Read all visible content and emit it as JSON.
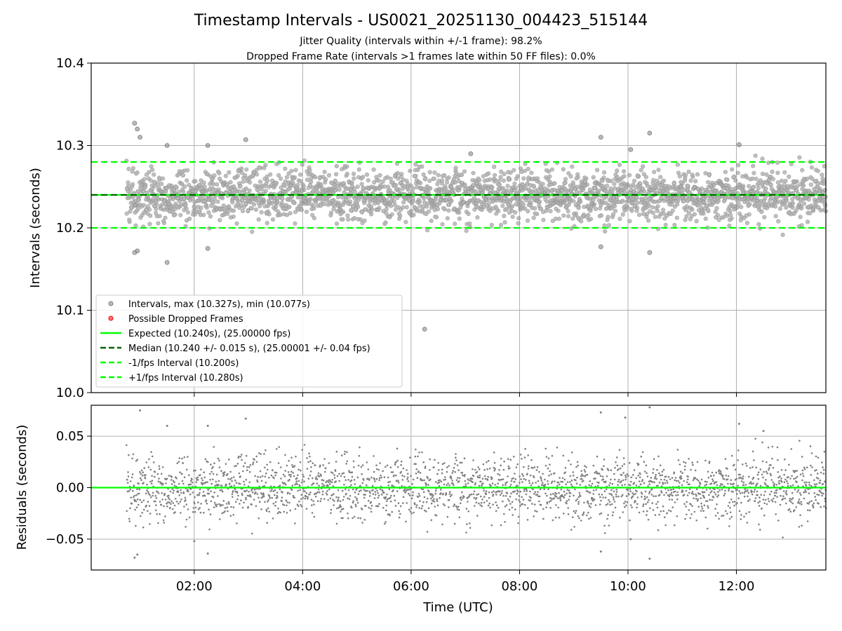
{
  "chart_data": {
    "title": "Timestamp Intervals - US0021_20251130_004423_515144",
    "subtitle_1": "Jitter Quality (intervals within +/-1 frame): 98.2%",
    "subtitle_2": "Dropped Frame Rate (intervals >1 frames late within 50 FF files): 0.0%",
    "xlabel": "Time (UTC)",
    "xticks": [
      {
        "value": 2,
        "label": "02:00"
      },
      {
        "value": 4,
        "label": "04:00"
      },
      {
        "value": 6,
        "label": "06:00"
      },
      {
        "value": 8,
        "label": "08:00"
      },
      {
        "value": 10,
        "label": "10:00"
      },
      {
        "value": 12,
        "label": "12:00"
      }
    ],
    "xlim": [
      0.1,
      13.65
    ],
    "data_time_range": [
      0.75,
      13.65
    ],
    "top": {
      "type": "scatter",
      "ylabel": "Intervals (seconds)",
      "ylim": [
        10.0,
        10.4
      ],
      "yticks": [
        {
          "value": 10.0,
          "label": "10.0"
        },
        {
          "value": 10.1,
          "label": "10.1"
        },
        {
          "value": 10.2,
          "label": "10.2"
        },
        {
          "value": 10.3,
          "label": "10.3"
        },
        {
          "value": 10.4,
          "label": "10.4"
        }
      ],
      "expected": 10.24,
      "median": 10.24,
      "minus_1fps": 10.2,
      "plus_1fps": 10.28,
      "outliers": [
        [
          0.9,
          10.327
        ],
        [
          0.95,
          10.32
        ],
        [
          1.0,
          10.31
        ],
        [
          1.5,
          10.3
        ],
        [
          2.25,
          10.3
        ],
        [
          2.95,
          10.307
        ],
        [
          0.9,
          10.17
        ],
        [
          0.95,
          10.172
        ],
        [
          1.5,
          10.158
        ],
        [
          2.25,
          10.175
        ],
        [
          7.1,
          10.29
        ],
        [
          9.5,
          10.31
        ],
        [
          10.05,
          10.295
        ],
        [
          10.4,
          10.315
        ],
        [
          12.05,
          10.301
        ],
        [
          9.5,
          10.177
        ],
        [
          10.4,
          10.17
        ],
        [
          6.25,
          10.077
        ]
      ],
      "legend": [
        {
          "label": "Intervals, max (10.327s), min (10.077s)",
          "kind": "dot",
          "color": "#808080"
        },
        {
          "label": "Possible Dropped Frames",
          "kind": "dot",
          "color": "#ff0000"
        },
        {
          "label": "Expected (10.240s), (25.00000 fps)",
          "kind": "line",
          "color": "#00ff00",
          "dash": "solid"
        },
        {
          "label": "Median (10.240 +/- 0.015 s), (25.00001 +/- 0.04 fps)",
          "kind": "line",
          "color": "#006400",
          "dash": "dashed"
        },
        {
          "label": "-1/fps Interval (10.200s)",
          "kind": "line",
          "color": "#00ff00",
          "dash": "dashed"
        },
        {
          "label": "+1/fps Interval (10.280s)",
          "kind": "line",
          "color": "#00ff00",
          "dash": "dashed"
        }
      ]
    },
    "bottom": {
      "type": "scatter",
      "ylabel": "Residuals (seconds)",
      "ylim": [
        -0.08,
        0.08
      ],
      "yticks": [
        {
          "value": -0.05,
          "label": "−0.05"
        },
        {
          "value": 0.0,
          "label": "0.00"
        },
        {
          "value": 0.05,
          "label": "0.05"
        }
      ],
      "zero_line": 0.0,
      "outliers": [
        [
          0.9,
          -0.068
        ],
        [
          0.95,
          -0.065
        ],
        [
          1.0,
          0.075
        ],
        [
          1.5,
          0.06
        ],
        [
          2.25,
          0.06
        ],
        [
          2.95,
          0.067
        ],
        [
          2.0,
          -0.052
        ],
        [
          2.25,
          -0.064
        ],
        [
          9.5,
          0.073
        ],
        [
          9.5,
          -0.062
        ],
        [
          9.95,
          0.068
        ],
        [
          10.05,
          -0.05
        ],
        [
          10.4,
          0.078
        ],
        [
          10.4,
          -0.069
        ],
        [
          12.05,
          0.062
        ],
        [
          12.5,
          0.055
        ]
      ]
    },
    "palette": {
      "points": "#808080",
      "expected": "#00ff00",
      "median": "#006400",
      "grid": "#b0b0b0"
    }
  }
}
